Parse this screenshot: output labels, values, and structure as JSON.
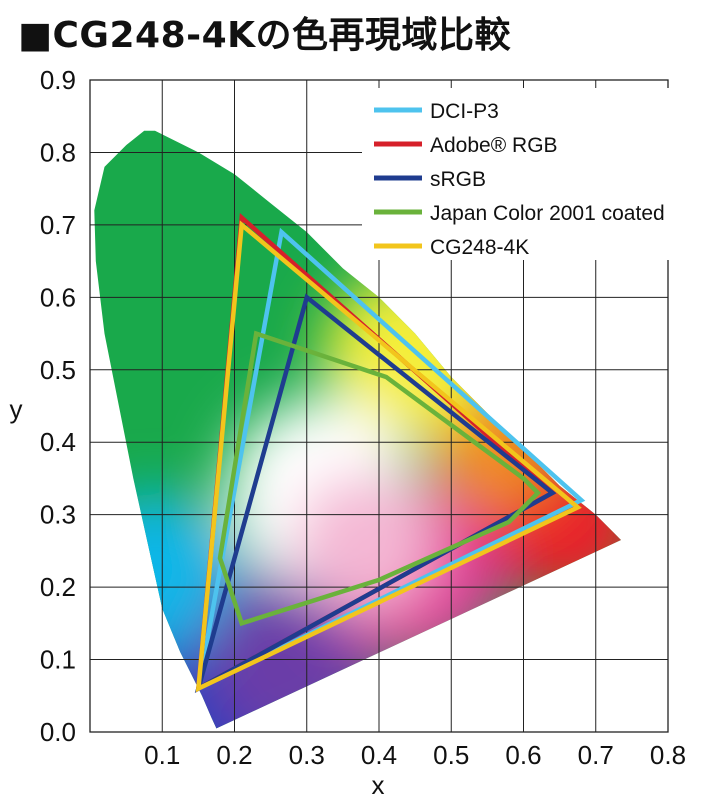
{
  "title": "■CG248-4Kの色再現域比較",
  "chart_data": {
    "type": "scatter",
    "title": "■CG248-4Kの色再現域比較",
    "xlabel": "x",
    "ylabel": "y",
    "xlim": [
      0,
      0.8
    ],
    "ylim": [
      0,
      0.9
    ],
    "x_ticks": [
      "0.1",
      "0.2",
      "0.3",
      "0.4",
      "0.5",
      "0.6",
      "0.7",
      "0.8"
    ],
    "y_ticks": [
      "0.0",
      "0.1",
      "0.2",
      "0.3",
      "0.4",
      "0.5",
      "0.6",
      "0.7",
      "0.8",
      "0.9"
    ],
    "grid": true,
    "legend_position": "top-right",
    "series": [
      {
        "name": "DCI-P3",
        "color": "#4ec3ee",
        "points": [
          [
            0.68,
            0.32
          ],
          [
            0.265,
            0.69
          ],
          [
            0.15,
            0.06
          ]
        ]
      },
      {
        "name": "Adobe® RGB",
        "color": "#d6202a",
        "points": [
          [
            0.64,
            0.33
          ],
          [
            0.21,
            0.71
          ],
          [
            0.15,
            0.06
          ]
        ]
      },
      {
        "name": "sRGB",
        "color": "#1f3c8f",
        "points": [
          [
            0.64,
            0.33
          ],
          [
            0.3,
            0.6
          ],
          [
            0.15,
            0.06
          ]
        ]
      },
      {
        "name": "Japan Color 2001 coated",
        "color": "#6ab23b",
        "points": [
          [
            0.6,
            0.35
          ],
          [
            0.62,
            0.33
          ],
          [
            0.58,
            0.29
          ],
          [
            0.4,
            0.21
          ],
          [
            0.21,
            0.15
          ],
          [
            0.18,
            0.24
          ],
          [
            0.23,
            0.55
          ],
          [
            0.41,
            0.49
          ]
        ]
      },
      {
        "name": "CG248-4K",
        "color": "#f2c51c",
        "points": [
          [
            0.675,
            0.31
          ],
          [
            0.21,
            0.7
          ],
          [
            0.15,
            0.06
          ]
        ]
      }
    ]
  }
}
